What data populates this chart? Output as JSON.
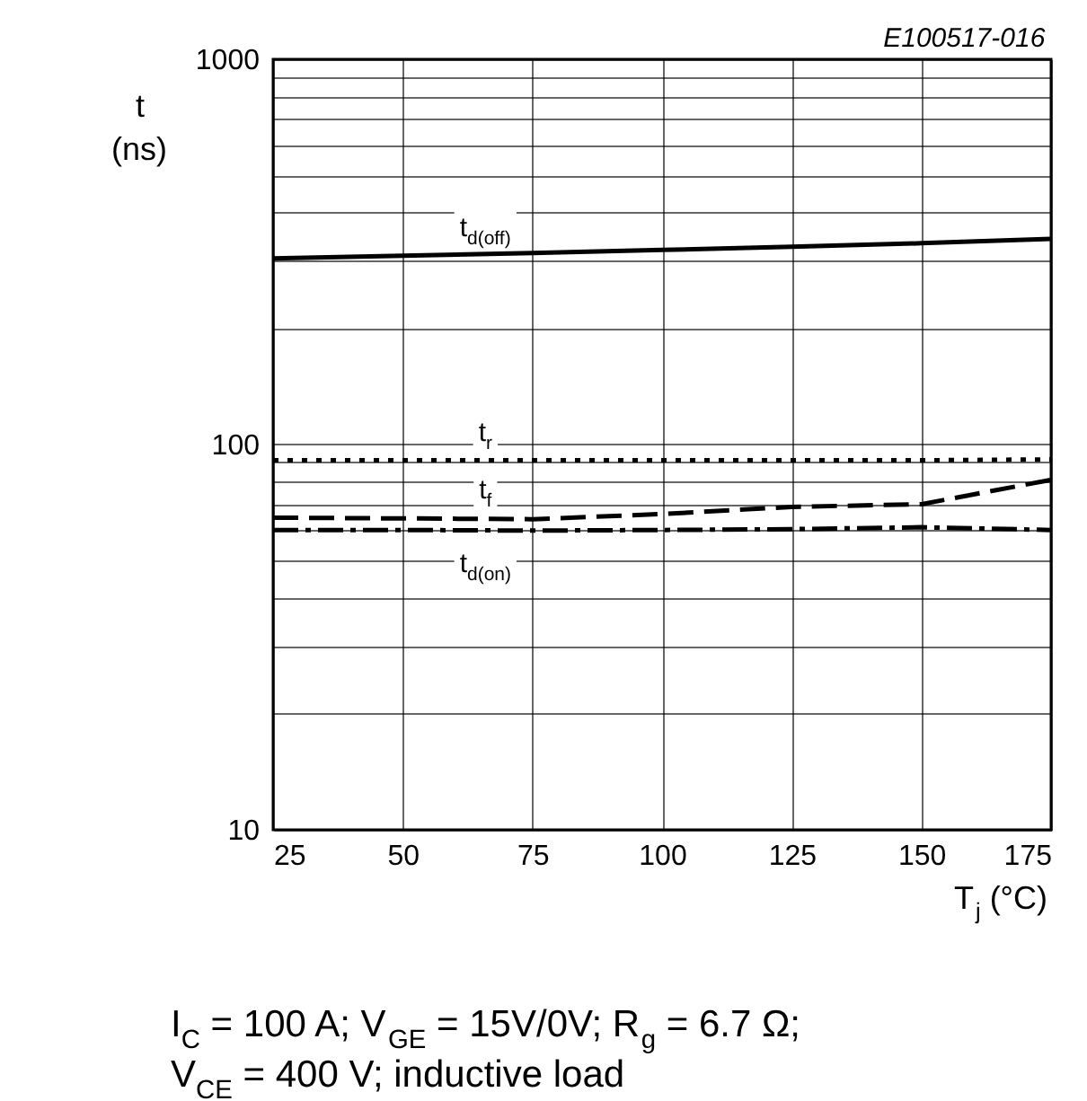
{
  "chart_data": {
    "type": "line",
    "xlabel": "T$_{j}$ (°C)",
    "ylabel": "t (ns)",
    "x": [
      25,
      50,
      75,
      100,
      125,
      150,
      175
    ],
    "series": [
      {
        "name": "t$_{d(off)}$",
        "color": "#000000",
        "line_style": "solid",
        "values": [
          304,
          309,
          314,
          320,
          326,
          333,
          342
        ]
      },
      {
        "name": "t$_{r}$",
        "color": "#000000",
        "line_style": "dotted",
        "values": [
          91,
          91,
          91,
          91,
          91,
          91,
          91.5
        ]
      },
      {
        "name": "t$_{f}$",
        "color": "#000000",
        "line_style": "dashed",
        "values": [
          64.6,
          64.3,
          64,
          66,
          68.9,
          70,
          81
        ]
      },
      {
        "name": "t$_{d(on)}$",
        "color": "#000000",
        "line_style": "dashdot",
        "values": [
          60,
          60,
          59.8,
          60,
          60.3,
          61,
          60
        ]
      }
    ],
    "xlim": [
      25,
      175
    ],
    "xticks": [
      25,
      50,
      75,
      100,
      125,
      150,
      175
    ],
    "ylim": [
      10,
      1000
    ],
    "log": "y",
    "yticks": [
      10,
      {
        "value": 20,
        "label": null
      },
      {
        "value": 30,
        "label": null
      },
      {
        "value": 40,
        "label": null
      },
      {
        "value": 50,
        "label": null
      },
      {
        "value": 60,
        "label": null
      },
      {
        "value": 70,
        "label": null
      },
      {
        "value": 80,
        "label": null
      },
      {
        "value": 90,
        "label": null
      },
      100,
      {
        "value": 200,
        "label": null
      },
      {
        "value": 300,
        "label": null
      },
      {
        "value": 400,
        "label": null
      },
      {
        "value": 500,
        "label": null
      },
      {
        "value": 600,
        "label": null
      },
      {
        "value": 700,
        "label": null
      },
      {
        "value": 800,
        "label": null
      },
      {
        "value": 900,
        "label": null
      },
      1000
    ],
    "grid": true,
    "marker": "none",
    "annotations": [
      "E100517-016",
      "I$_{C}$ = 100 A; V$_{GE}$ = 15V/0V; R$_{g}$ = 6.7 Ω;",
      "V$_{CE}$ = 400 V; inductive load"
    ]
  }
}
